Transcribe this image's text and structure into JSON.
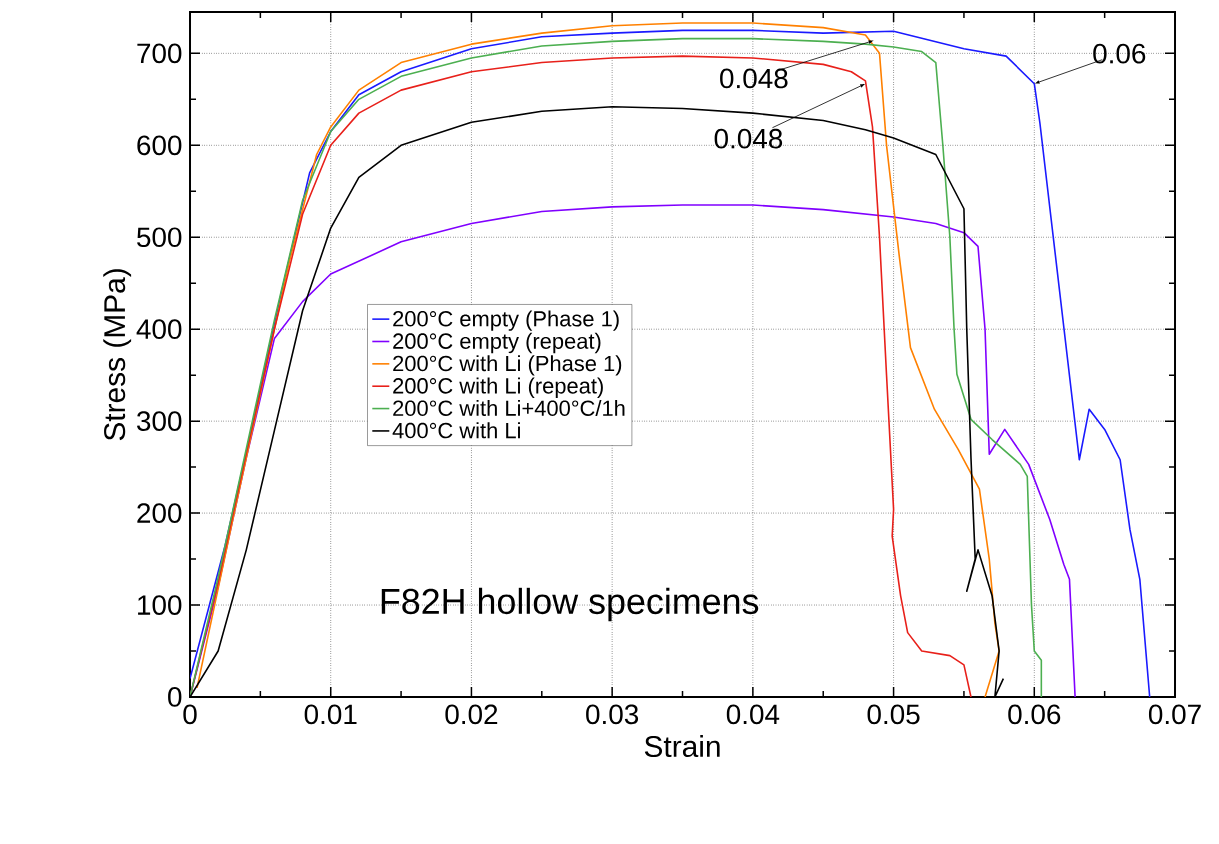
{
  "chart_data": {
    "type": "line",
    "xlabel": "Strain",
    "ylabel": "Stress (MPa)",
    "xlim": [
      0,
      0.07
    ],
    "ylim": [
      0,
      745
    ],
    "xticks": [
      0,
      0.01,
      0.02,
      0.03,
      0.04,
      0.05,
      0.06,
      0.07
    ],
    "yticks": [
      0,
      100,
      200,
      300,
      400,
      500,
      600,
      700
    ],
    "grid": true,
    "legend": "left",
    "annotations": [
      {
        "text": "0.06",
        "x": 0.06,
        "y": 667
      },
      {
        "text": "0.048",
        "x": 0.0486,
        "y": 714
      },
      {
        "text": "0.048",
        "x": 0.048,
        "y": 667
      },
      "F82H hollow specimens"
    ],
    "series": [
      {
        "name": "200°C empty (Phase 1)",
        "color": "#1a1aff",
        "x": [
          0,
          0.0025,
          0.0045,
          0.0065,
          0.0085,
          0.01,
          0.012,
          0.015,
          0.02,
          0.025,
          0.03,
          0.035,
          0.04,
          0.045,
          0.05,
          0.055,
          0.058,
          0.06,
          0.0604,
          0.0632,
          0.0639,
          0.065,
          0.0661,
          0.0668,
          0.0675,
          0.0682
        ],
        "values": [
          20,
          165,
          300,
          440,
          570,
          615,
          655,
          680,
          705,
          718,
          722,
          725,
          725,
          722,
          724,
          705,
          697,
          667,
          624,
          258,
          313,
          291,
          258,
          182,
          128,
          0
        ]
      },
      {
        "name": "200°C empty (repeat)",
        "color": "#8000ff",
        "x": [
          0,
          0.002,
          0.004,
          0.006,
          0.008,
          0.01,
          0.015,
          0.02,
          0.025,
          0.03,
          0.035,
          0.04,
          0.045,
          0.05,
          0.053,
          0.055,
          0.056,
          0.0565,
          0.0568,
          0.0579,
          0.0596,
          0.0611,
          0.0621,
          0.0625,
          0.0629
        ],
        "values": [
          0,
          120,
          260,
          390,
          430,
          460,
          495,
          515,
          528,
          533,
          535,
          535,
          530,
          522,
          515,
          505,
          490,
          400,
          264,
          291,
          253,
          193,
          144,
          128,
          0
        ]
      },
      {
        "name": "200°C with Li (Phase 1)",
        "color": "#ff8000",
        "x": [
          0.0005,
          0.003,
          0.005,
          0.007,
          0.009,
          0.01,
          0.012,
          0.015,
          0.02,
          0.025,
          0.03,
          0.035,
          0.04,
          0.045,
          0.048,
          0.049,
          0.0495,
          0.0504,
          0.0512,
          0.0529,
          0.0546,
          0.0561,
          0.0568,
          0.0572,
          0.0575,
          0.0565
        ],
        "values": [
          10,
          190,
          330,
          470,
          590,
          620,
          660,
          690,
          710,
          722,
          730,
          733,
          733,
          728,
          720,
          700,
          600,
          480,
          380,
          313,
          269,
          226,
          150,
          80,
          50,
          0
        ]
      },
      {
        "name": "200°C with Li (repeat)",
        "color": "#e8201a",
        "x": [
          0,
          0.002,
          0.004,
          0.006,
          0.008,
          0.01,
          0.012,
          0.015,
          0.02,
          0.025,
          0.03,
          0.035,
          0.04,
          0.045,
          0.047,
          0.048,
          0.0485,
          0.049,
          0.0495,
          0.05,
          0.0499,
          0.0505,
          0.051,
          0.052,
          0.054,
          0.055,
          0.0555
        ],
        "values": [
          0,
          125,
          265,
          400,
          525,
          600,
          635,
          660,
          680,
          690,
          695,
          697,
          695,
          688,
          680,
          670,
          620,
          500,
          350,
          204,
          175,
          110,
          70,
          50,
          45,
          35,
          0
        ]
      },
      {
        "name": "200°C with Li+400°C/1h",
        "color": "#4caf50",
        "x": [
          0,
          0.002,
          0.004,
          0.006,
          0.008,
          0.01,
          0.012,
          0.015,
          0.02,
          0.025,
          0.03,
          0.035,
          0.04,
          0.045,
          0.048,
          0.05,
          0.052,
          0.053,
          0.0535,
          0.054,
          0.0543,
          0.0545,
          0.0555,
          0.057,
          0.059,
          0.0595,
          0.0598,
          0.06,
          0.0605,
          0.0605
        ],
        "values": [
          0,
          130,
          270,
          410,
          540,
          615,
          650,
          675,
          695,
          708,
          713,
          716,
          716,
          713,
          710,
          707,
          702,
          690,
          600,
          500,
          400,
          351,
          302,
          280,
          253,
          240,
          100,
          50,
          40,
          0
        ]
      },
      {
        "name": "400°C with Li",
        "color": "#000000",
        "x": [
          0,
          0.002,
          0.004,
          0.006,
          0.008,
          0.01,
          0.012,
          0.015,
          0.02,
          0.025,
          0.03,
          0.035,
          0.04,
          0.045,
          0.048,
          0.05,
          0.053,
          0.055,
          0.0552,
          0.0555,
          0.0558,
          0.0552,
          0.056,
          0.057,
          0.0575,
          0.0572,
          0.0578
        ],
        "values": [
          0,
          50,
          160,
          290,
          420,
          510,
          565,
          600,
          625,
          637,
          642,
          640,
          635,
          627,
          617,
          608,
          590,
          531,
          400,
          260,
          150,
          115,
          160,
          110,
          50,
          0,
          20
        ]
      }
    ]
  }
}
